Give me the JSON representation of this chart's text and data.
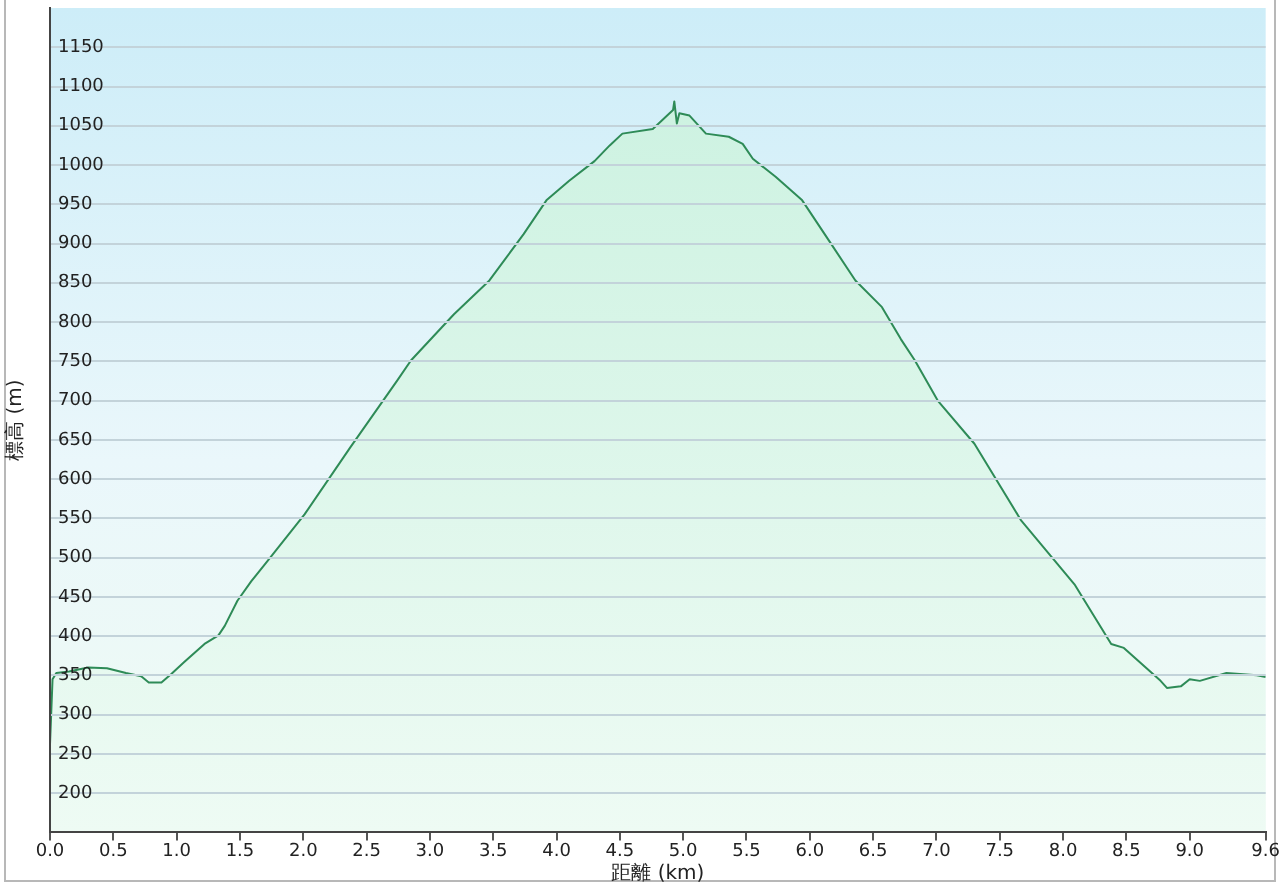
{
  "chart_data": {
    "type": "area",
    "xlabel": "距離 (km)",
    "ylabel": "標高 (m)",
    "x": [
      0,
      0.02,
      0.05,
      0.15,
      0.3,
      0.45,
      0.6,
      0.72,
      0.78,
      0.88,
      0.96,
      1.06,
      1.22,
      1.33,
      1.38,
      1.48,
      1.59,
      1.72,
      2.01,
      2.37,
      2.74,
      2.85,
      3.19,
      3.47,
      3.74,
      3.92,
      4.1,
      4.3,
      4.42,
      4.52,
      4.76,
      4.92,
      4.93,
      4.95,
      4.97,
      5.05,
      5.18,
      5.36,
      5.47,
      5.55,
      5.73,
      5.94,
      6.15,
      6.36,
      6.57,
      6.72,
      6.83,
      7.01,
      7.3,
      7.67,
      8.09,
      8.38,
      8.48,
      8.77,
      8.82,
      8.93,
      9.0,
      9.08,
      9.29,
      9.53,
      9.6
    ],
    "series": [
      {
        "color": "#2e8b57",
        "values": [
          262,
          345,
          353,
          355,
          360,
          359,
          353,
          349,
          341,
          341,
          352,
          367,
          390,
          401,
          413,
          445,
          470,
          496,
          555,
          640,
          725,
          751,
          810,
          853,
          912,
          955,
          980,
          1005,
          1025,
          1040,
          1046,
          1070,
          1081,
          1053,
          1066,
          1063,
          1040,
          1036,
          1027,
          1008,
          985,
          955,
          904,
          853,
          819,
          778,
          751,
          700,
          645,
          547,
          466,
          390,
          385,
          343,
          334,
          336,
          345,
          343,
          353,
          350,
          348
        ]
      }
    ],
    "xlim": [
      0,
      9.6
    ],
    "xticks": [
      {
        "value": 0,
        "label": "0.0"
      },
      0.5,
      {
        "value": 1,
        "label": "1.0"
      },
      1.5,
      {
        "value": 2,
        "label": "2.0"
      },
      2.5,
      {
        "value": 3,
        "label": "3.0"
      },
      3.5,
      {
        "value": 4,
        "label": "4.0"
      },
      4.5,
      {
        "value": 5,
        "label": "5.0"
      },
      5.5,
      {
        "value": 6,
        "label": "6.0"
      },
      6.5,
      {
        "value": 7,
        "label": "7.0"
      },
      7.5,
      {
        "value": 8,
        "label": "8.0"
      },
      8.5,
      {
        "value": 9,
        "label": "9.0"
      },
      9.6
    ],
    "ylim": [
      150,
      1200
    ],
    "yticks": [
      200,
      250,
      300,
      350,
      400,
      450,
      500,
      550,
      600,
      650,
      700,
      750,
      800,
      850,
      900,
      950,
      1000,
      1050,
      1100,
      1150
    ],
    "grid": "y"
  }
}
